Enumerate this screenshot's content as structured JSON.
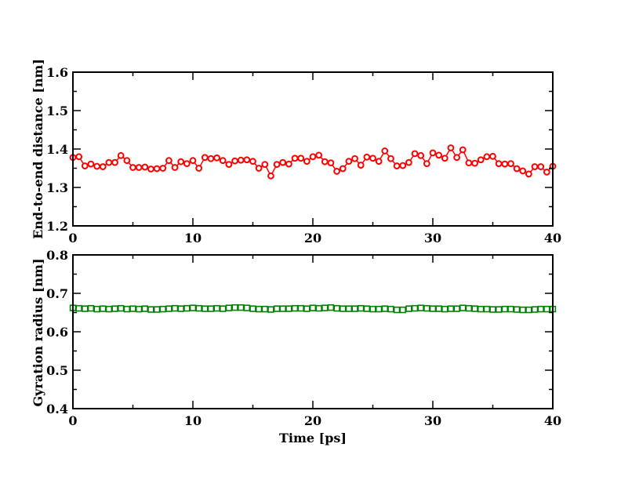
{
  "chart_data": [
    {
      "type": "line",
      "marker": "circle",
      "ylabel": "End-to-end distance [nm]",
      "xlabel": "",
      "xlim": [
        0,
        40
      ],
      "ylim": [
        1.2,
        1.6
      ],
      "xticks": [
        0,
        10,
        20,
        30,
        40
      ],
      "yticks": [
        1.2,
        1.3,
        1.4,
        1.5,
        1.6
      ],
      "xtick_labels": [
        "0",
        "10",
        "20",
        "30",
        "40"
      ],
      "ytick_labels": [
        "1.2",
        "1.3",
        "1.4",
        "1.5",
        "1.6"
      ],
      "series": [
        {
          "name": "End-to-end distance",
          "color": "#ff0000",
          "x": [
            0,
            0.5,
            1,
            1.5,
            2,
            2.5,
            3,
            3.5,
            4,
            4.5,
            5,
            5.5,
            6,
            6.5,
            7,
            7.5,
            8,
            8.5,
            9,
            9.5,
            10,
            10.5,
            11,
            11.5,
            12,
            12.5,
            13,
            13.5,
            14,
            14.5,
            15,
            15.5,
            16,
            16.5,
            17,
            17.5,
            18,
            18.5,
            19,
            19.5,
            20,
            20.5,
            21,
            21.5,
            22,
            22.5,
            23,
            23.5,
            24,
            24.5,
            25,
            25.5,
            26,
            26.5,
            27,
            27.5,
            28,
            28.5,
            29,
            29.5,
            30,
            30.5,
            31,
            31.5,
            32,
            32.5,
            33,
            33.5,
            34,
            34.5,
            35,
            35.5,
            36,
            36.5,
            37,
            37.5,
            38,
            38.5,
            39,
            39.5,
            40
          ],
          "values": [
            1.378,
            1.38,
            1.356,
            1.361,
            1.355,
            1.354,
            1.365,
            1.365,
            1.383,
            1.37,
            1.352,
            1.352,
            1.353,
            1.348,
            1.349,
            1.35,
            1.37,
            1.352,
            1.367,
            1.362,
            1.37,
            1.35,
            1.378,
            1.375,
            1.377,
            1.37,
            1.36,
            1.369,
            1.371,
            1.372,
            1.368,
            1.35,
            1.36,
            1.33,
            1.36,
            1.365,
            1.361,
            1.376,
            1.376,
            1.368,
            1.38,
            1.384,
            1.367,
            1.364,
            1.342,
            1.349,
            1.368,
            1.375,
            1.358,
            1.379,
            1.376,
            1.368,
            1.395,
            1.375,
            1.356,
            1.357,
            1.365,
            1.388,
            1.383,
            1.362,
            1.39,
            1.384,
            1.376,
            1.403,
            1.378,
            1.398,
            1.364,
            1.363,
            1.372,
            1.38,
            1.381,
            1.362,
            1.361,
            1.362,
            1.349,
            1.343,
            1.335,
            1.354,
            1.354,
            1.34,
            1.355
          ]
        }
      ]
    },
    {
      "type": "line",
      "marker": "square",
      "ylabel": "Gyration radius [nm]",
      "xlabel": "Time [ps]",
      "xlim": [
        0,
        40
      ],
      "ylim": [
        0.4,
        0.8
      ],
      "xticks": [
        0,
        10,
        20,
        30,
        40
      ],
      "yticks": [
        0.4,
        0.5,
        0.6,
        0.7,
        0.8
      ],
      "xtick_labels": [
        "0",
        "10",
        "20",
        "30",
        "40"
      ],
      "ytick_labels": [
        "0.4",
        "0.5",
        "0.6",
        "0.7",
        "0.8"
      ],
      "series": [
        {
          "name": "Gyration radius",
          "color": "#008000",
          "x": [
            0,
            0.5,
            1,
            1.5,
            2,
            2.5,
            3,
            3.5,
            4,
            4.5,
            5,
            5.5,
            6,
            6.5,
            7,
            7.5,
            8,
            8.5,
            9,
            9.5,
            10,
            10.5,
            11,
            11.5,
            12,
            12.5,
            13,
            13.5,
            14,
            14.5,
            15,
            15.5,
            16,
            16.5,
            17,
            17.5,
            18,
            18.5,
            19,
            19.5,
            20,
            20.5,
            21,
            21.5,
            22,
            22.5,
            23,
            23.5,
            24,
            24.5,
            25,
            25.5,
            26,
            26.5,
            27,
            27.5,
            28,
            28.5,
            29,
            29.5,
            30,
            30.5,
            31,
            31.5,
            32,
            32.5,
            33,
            33.5,
            34,
            34.5,
            35,
            35.5,
            36,
            36.5,
            37,
            37.5,
            38,
            38.5,
            39,
            39.5,
            40
          ],
          "values": [
            0.662,
            0.661,
            0.66,
            0.661,
            0.659,
            0.66,
            0.659,
            0.66,
            0.661,
            0.659,
            0.66,
            0.659,
            0.66,
            0.658,
            0.658,
            0.659,
            0.66,
            0.661,
            0.66,
            0.661,
            0.662,
            0.661,
            0.66,
            0.66,
            0.661,
            0.66,
            0.662,
            0.663,
            0.663,
            0.662,
            0.66,
            0.659,
            0.659,
            0.658,
            0.66,
            0.66,
            0.66,
            0.661,
            0.661,
            0.66,
            0.662,
            0.661,
            0.662,
            0.663,
            0.661,
            0.66,
            0.66,
            0.66,
            0.661,
            0.66,
            0.659,
            0.659,
            0.66,
            0.659,
            0.657,
            0.657,
            0.66,
            0.661,
            0.662,
            0.661,
            0.66,
            0.66,
            0.659,
            0.66,
            0.66,
            0.662,
            0.661,
            0.66,
            0.659,
            0.659,
            0.658,
            0.658,
            0.659,
            0.659,
            0.658,
            0.657,
            0.657,
            0.658,
            0.659,
            0.659,
            0.659
          ]
        }
      ]
    }
  ]
}
